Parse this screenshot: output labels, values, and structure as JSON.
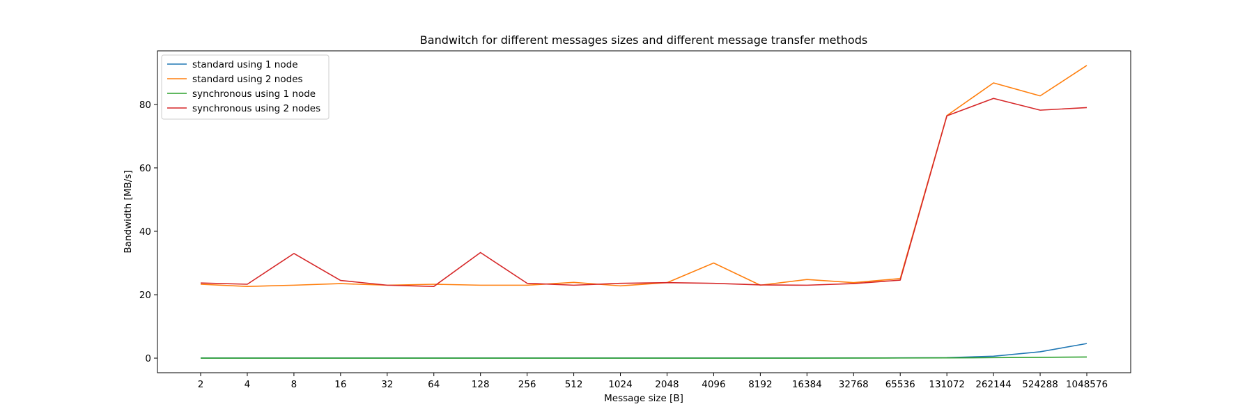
{
  "chart_data": {
    "type": "line",
    "title": "Bandwitch for different messages sizes and different message transfer methods",
    "xlabel": "Message size [B]",
    "ylabel": "Bandwidth [MB/s]",
    "categories": [
      "2",
      "4",
      "8",
      "16",
      "32",
      "64",
      "128",
      "256",
      "512",
      "1024",
      "2048",
      "4096",
      "8192",
      "16384",
      "32768",
      "65536",
      "131072",
      "262144",
      "524288",
      "1048576"
    ],
    "y_ticks": [
      0,
      20,
      40,
      60,
      80
    ],
    "ylim": [
      -4.6,
      96.9
    ],
    "grid": false,
    "legend_position": "top-left",
    "series": [
      {
        "name": "standard using 1 node",
        "color": "#1f77b4",
        "values": [
          0.02,
          0.02,
          0.02,
          0.02,
          0.02,
          0.02,
          0.02,
          0.02,
          0.02,
          0.02,
          0.02,
          0.03,
          0.03,
          0.04,
          0.05,
          0.08,
          0.15,
          0.6,
          2.0,
          4.6
        ]
      },
      {
        "name": "standard using 2 nodes",
        "color": "#ff7f0e",
        "values": [
          23.3,
          22.6,
          23.0,
          23.5,
          23.0,
          23.3,
          23.0,
          23.0,
          23.9,
          22.8,
          23.8,
          30.0,
          23.0,
          24.8,
          23.8,
          25.1,
          76.5,
          86.8,
          82.7,
          92.3
        ]
      },
      {
        "name": "synchronous using 1 node",
        "color": "#2ca02c",
        "values": [
          0.0,
          0.0,
          0.0,
          0.0,
          0.0,
          0.0,
          0.0,
          0.0,
          0.0,
          0.0,
          0.0,
          0.0,
          0.0,
          0.0,
          0.02,
          0.04,
          0.08,
          0.15,
          0.25,
          0.35
        ]
      },
      {
        "name": "synchronous using 2 nodes",
        "color": "#d62728",
        "values": [
          23.7,
          23.3,
          33.0,
          24.5,
          23.0,
          22.6,
          33.3,
          23.6,
          23.0,
          23.6,
          23.8,
          23.6,
          23.1,
          23.0,
          23.5,
          24.6,
          76.4,
          81.9,
          78.2,
          79.0
        ]
      }
    ]
  }
}
